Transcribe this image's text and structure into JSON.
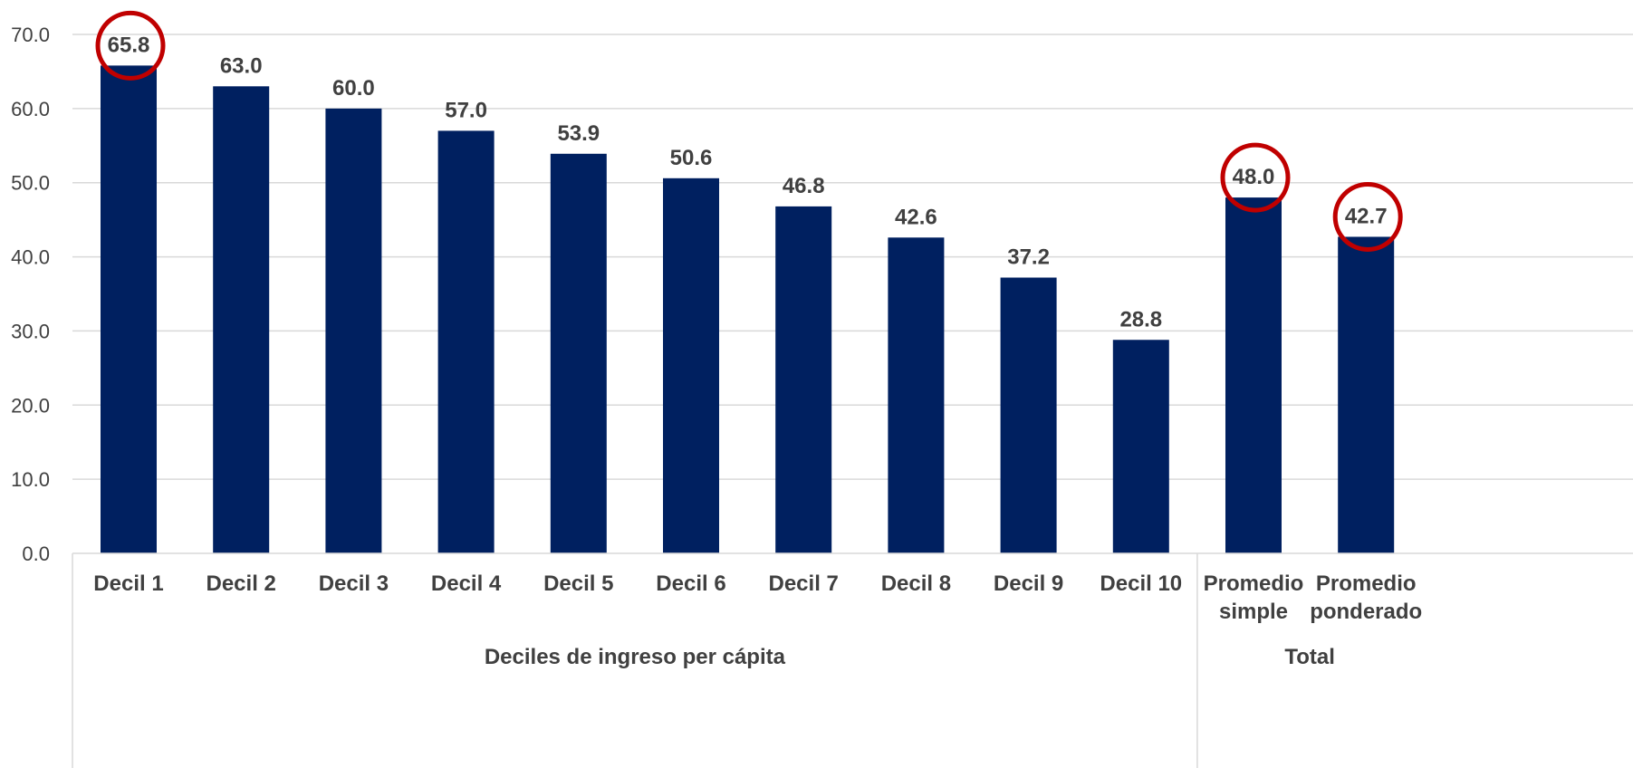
{
  "chart_data": {
    "type": "bar",
    "title": "",
    "xlabel": "",
    "ylabel": "",
    "ylim": [
      0,
      70
    ],
    "yticks": [
      "0.0",
      "10.0",
      "20.0",
      "30.0",
      "40.0",
      "50.0",
      "60.0",
      "70.0"
    ],
    "grid": true,
    "bar_color": "#002060",
    "highlight_color": "#C00000",
    "categories": [
      [
        "Decil 1"
      ],
      [
        "Decil 2"
      ],
      [
        "Decil 3"
      ],
      [
        "Decil 4"
      ],
      [
        "Decil 5"
      ],
      [
        "Decil 6"
      ],
      [
        "Decil 7"
      ],
      [
        "Decil 8"
      ],
      [
        "Decil 9"
      ],
      [
        "Decil 10"
      ],
      [
        "Promedio",
        "simple"
      ],
      [
        "Promedio",
        "ponderado"
      ]
    ],
    "values": [
      65.8,
      63.0,
      60.0,
      57.0,
      53.9,
      50.6,
      46.8,
      42.6,
      37.2,
      28.8,
      48.0,
      42.7
    ],
    "value_labels": [
      "65.8",
      "63.0",
      "60.0",
      "57.0",
      "53.9",
      "50.6",
      "46.8",
      "42.6",
      "37.2",
      "28.8",
      "48.0",
      "42.7"
    ],
    "highlighted": [
      0,
      10,
      11
    ],
    "groups": [
      {
        "label": "Deciles de ingreso per cápita",
        "start": 0,
        "end": 9
      },
      {
        "label": "Total",
        "start": 10,
        "end": 11
      }
    ]
  }
}
